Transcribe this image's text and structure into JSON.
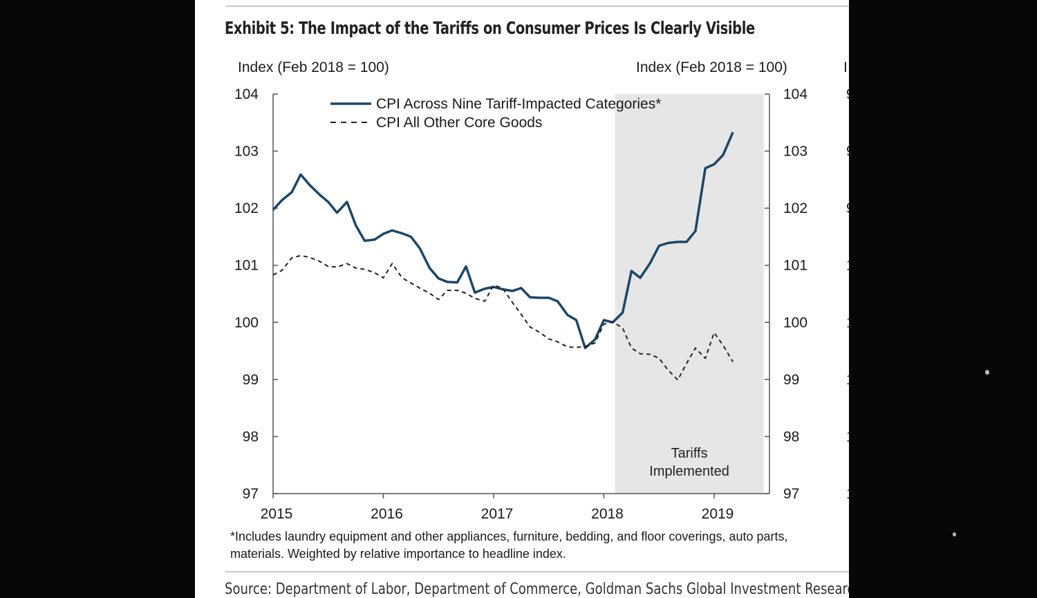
{
  "exhibit_title": "Exhibit 5: The Impact of the Tariffs on Consumer Prices Is Clearly Visible",
  "chart_data": {
    "type": "line",
    "ylabel_left": "Index (Feb 2018 = 100)",
    "ylabel_right": "Index (Feb 2018 = 100)",
    "ylabel_extra": "I",
    "ylim": [
      97,
      104
    ],
    "yticks": [
      97,
      98,
      99,
      100,
      101,
      102,
      103,
      104
    ],
    "ytick_labels": [
      "97",
      "98",
      "99",
      "100",
      "101",
      "102",
      "103",
      "104"
    ],
    "xlim": [
      2015,
      2019.6
    ],
    "xticks": [
      2015,
      2016,
      2017,
      2018,
      2019
    ],
    "xtick_labels": [
      "2015",
      "2016",
      "2017",
      "2018",
      "2019"
    ],
    "right_extra_tick_labels": [
      "1",
      "1",
      "1",
      "1",
      "1",
      "9",
      "9",
      "9"
    ],
    "shaded_region": {
      "x": [
        2018.1,
        2019.45
      ],
      "label_line1": "Tariffs",
      "label_line2": "Implemented",
      "color": "#e6e6e6"
    },
    "legend_position": "top-left",
    "series": [
      {
        "name": "CPI Across Nine Tariff-Impacted Categories*",
        "style": "solid",
        "color": "#1b4668",
        "x": [
          2015.0,
          2015.08,
          2015.17,
          2015.25,
          2015.33,
          2015.42,
          2015.5,
          2015.58,
          2015.67,
          2015.75,
          2015.83,
          2015.92,
          2016.0,
          2016.08,
          2016.17,
          2016.25,
          2016.33,
          2016.42,
          2016.5,
          2016.58,
          2016.67,
          2016.75,
          2016.83,
          2016.92,
          2017.0,
          2017.08,
          2017.17,
          2017.25,
          2017.33,
          2017.42,
          2017.5,
          2017.58,
          2017.67,
          2017.75,
          2017.83,
          2017.92,
          2018.0,
          2018.08,
          2018.17,
          2018.25,
          2018.33,
          2018.42,
          2018.5,
          2018.58,
          2018.67,
          2018.75,
          2018.83,
          2018.92,
          2019.0,
          2019.08,
          2019.17
        ],
        "values": [
          101.97,
          102.14,
          102.28,
          102.59,
          102.41,
          102.24,
          102.11,
          101.92,
          102.11,
          101.7,
          101.43,
          101.45,
          101.55,
          101.61,
          101.56,
          101.5,
          101.3,
          100.95,
          100.77,
          100.71,
          100.7,
          100.98,
          100.52,
          100.59,
          100.62,
          100.58,
          100.55,
          100.6,
          100.44,
          100.43,
          100.43,
          100.37,
          100.13,
          100.04,
          99.55,
          99.7,
          100.04,
          100.0,
          100.17,
          100.9,
          100.78,
          101.04,
          101.34,
          101.39,
          101.41,
          101.41,
          101.6,
          102.7,
          102.77,
          102.93,
          103.33
        ]
      },
      {
        "name": "CPI All Other Core Goods",
        "style": "dashed",
        "color": "#222222",
        "x": [
          2015.0,
          2015.08,
          2015.17,
          2015.25,
          2015.33,
          2015.42,
          2015.5,
          2015.58,
          2015.67,
          2015.75,
          2015.83,
          2015.92,
          2016.0,
          2016.08,
          2016.17,
          2016.25,
          2016.33,
          2016.42,
          2016.5,
          2016.58,
          2016.67,
          2016.75,
          2016.83,
          2016.92,
          2017.0,
          2017.08,
          2017.17,
          2017.25,
          2017.33,
          2017.42,
          2017.5,
          2017.58,
          2017.67,
          2017.75,
          2017.83,
          2017.92,
          2018.0,
          2018.08,
          2018.17,
          2018.25,
          2018.33,
          2018.42,
          2018.5,
          2018.58,
          2018.67,
          2018.75,
          2018.83,
          2018.92,
          2019.0,
          2019.08,
          2019.17
        ],
        "values": [
          100.83,
          100.91,
          101.13,
          101.17,
          101.14,
          101.07,
          100.98,
          100.97,
          101.03,
          100.95,
          100.93,
          100.87,
          100.78,
          101.03,
          100.78,
          100.69,
          100.6,
          100.51,
          100.4,
          100.56,
          100.56,
          100.51,
          100.42,
          100.37,
          100.65,
          100.6,
          100.35,
          100.14,
          99.92,
          99.82,
          99.71,
          99.66,
          99.57,
          99.56,
          99.58,
          99.64,
          99.97,
          100.01,
          99.9,
          99.55,
          99.45,
          99.44,
          99.37,
          99.17,
          98.99,
          99.28,
          99.55,
          99.37,
          99.82,
          99.6,
          99.31
        ]
      }
    ]
  },
  "footnote_line1": "*Includes laundry equipment and other appliances, furniture, bedding, and floor coverings, auto parts,",
  "footnote_line2": "materials. Weighted by relative importance to headline index.",
  "source": "Source: Department of Labor, Department of Commerce, Goldman Sachs Global Investment Research"
}
